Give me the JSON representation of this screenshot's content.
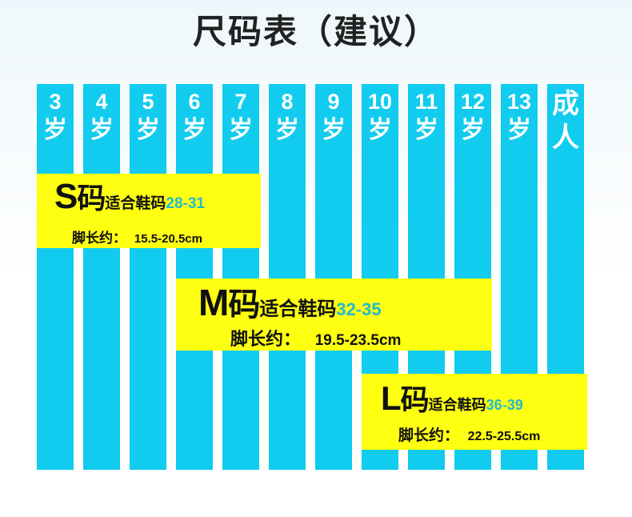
{
  "title": "尺码表（建议）",
  "columns": [
    {
      "num": "3",
      "unit": "岁"
    },
    {
      "num": "4",
      "unit": "岁"
    },
    {
      "num": "5",
      "unit": "岁"
    },
    {
      "num": "6",
      "unit": "岁"
    },
    {
      "num": "7",
      "unit": "岁"
    },
    {
      "num": "8",
      "unit": "岁"
    },
    {
      "num": "9",
      "unit": "岁"
    },
    {
      "num": "10",
      "unit": "岁"
    },
    {
      "num": "11",
      "unit": "岁"
    },
    {
      "num": "12",
      "unit": "岁"
    },
    {
      "num": "13",
      "unit": "岁"
    },
    {
      "num": "成",
      "unit": "人"
    }
  ],
  "sizes": {
    "s": {
      "letter": "S",
      "ma": "码",
      "fit": "适合鞋码",
      "shoe": "28-31",
      "foot_label": "脚长约：",
      "foot": "15.5-20.5cm"
    },
    "m": {
      "letter": "M",
      "ma": "码",
      "fit": "适合鞋码",
      "shoe": "32-35",
      "foot_label": "脚长约：",
      "foot": "19.5-23.5cm"
    },
    "l": {
      "letter": "L",
      "ma": "码",
      "fit": "适合鞋码",
      "shoe": "36-39",
      "foot_label": "脚长约：",
      "foot": "22.5-25.5cm"
    }
  },
  "colors": {
    "column": "#11ccee",
    "box": "#ffff11",
    "shoe_range": "#22bbcc"
  }
}
